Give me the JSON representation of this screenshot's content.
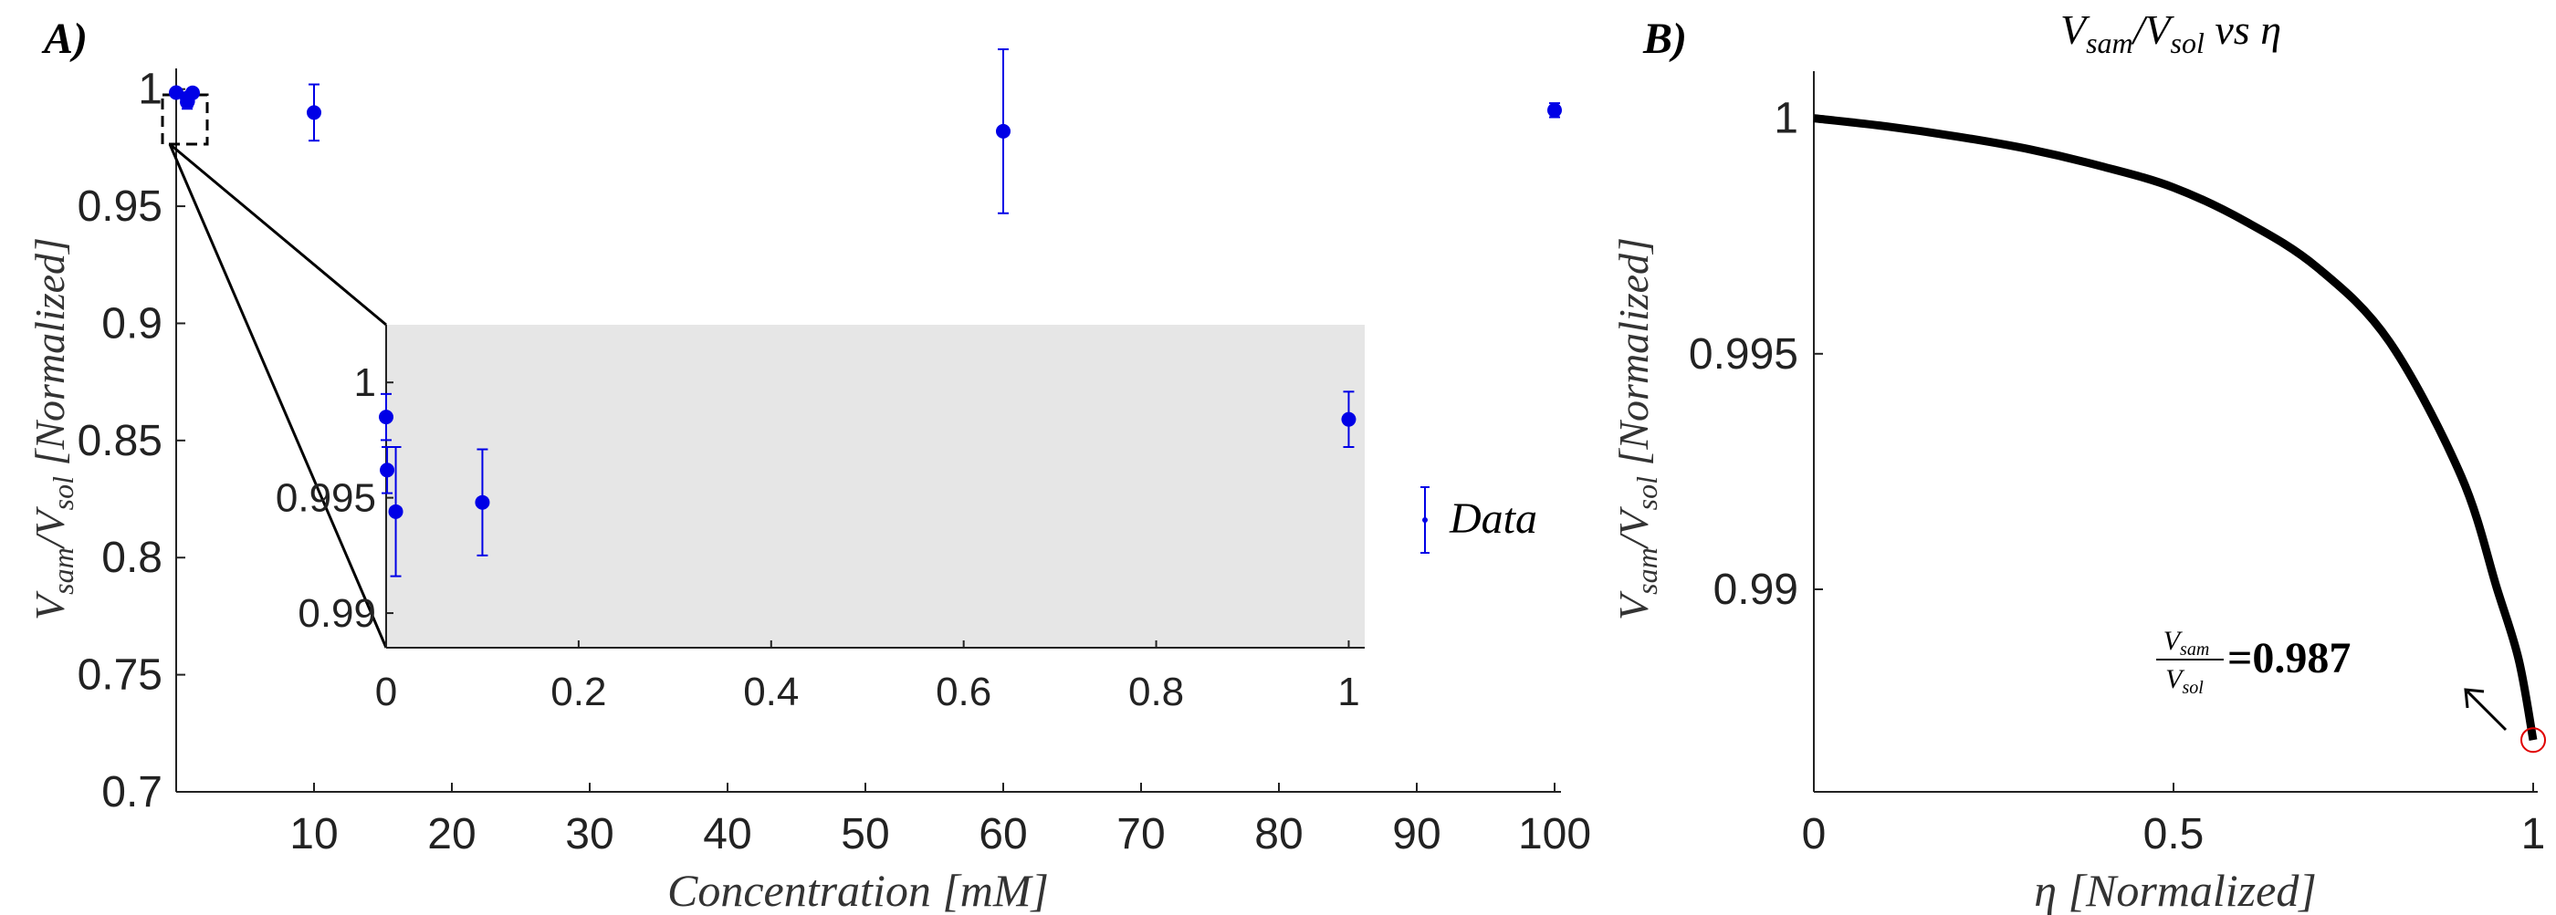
{
  "chart_data": [
    {
      "panel_label": "A)",
      "type": "scatter",
      "title": "",
      "xlabel": "Concentration [mM]",
      "ylabel_main": "V",
      "ylabel_sub1": "sam",
      "ylabel_mid": "/V",
      "ylabel_sub2": "sol",
      "ylabel_tail": " [Normalized]",
      "xlim": [
        0,
        100
      ],
      "ylim": [
        0.7,
        1.01
      ],
      "xticks": [
        "10",
        "20",
        "30",
        "40",
        "50",
        "60",
        "70",
        "80",
        "90",
        "100"
      ],
      "yticks": [
        "0.7",
        "0.75",
        "0.8",
        "0.85",
        "0.9",
        "0.95",
        "1"
      ],
      "legend": "Data",
      "legend_position": "right",
      "series": [
        {
          "color": "#0000e6",
          "points": [
            {
              "x": 0,
              "y": 0.9985,
              "err": 0.001
            },
            {
              "x": 0.001,
              "y": 0.9962,
              "err": 0.001
            },
            {
              "x": 0.01,
              "y": 0.9944,
              "err": 0.0028
            },
            {
              "x": 0.1,
              "y": 0.9948,
              "err": 0.0023
            },
            {
              "x": 1,
              "y": 0.9984,
              "err": 0.0012
            },
            {
              "x": 10,
              "y": 0.99,
              "err": 0.012
            },
            {
              "x": 60,
              "y": 0.982,
              "err": 0.035
            },
            {
              "x": 100,
              "y": 0.991,
              "err": 0.003
            }
          ]
        }
      ],
      "inset": {
        "xlim": [
          0,
          1.01
        ],
        "ylim": [
          0.9885,
          1.0025
        ],
        "xticks": [
          "0",
          "0.2",
          "0.4",
          "0.6",
          "0.8",
          "1"
        ],
        "yticks": [
          "0.99",
          "0.995",
          "1"
        ],
        "background": "#e6e6e6"
      }
    },
    {
      "panel_label": "B)",
      "type": "line",
      "title_main": "V",
      "title_sub1": "sam",
      "title_mid": "/V",
      "title_sub2": "sol",
      "title_tail": " vs η",
      "xlabel": "η [Normalized]",
      "ylabel_main": "V",
      "ylabel_sub1": "sam",
      "ylabel_mid": "/V",
      "ylabel_sub2": "sol",
      "ylabel_tail": " [Normalized]",
      "xlim": [
        0,
        1
      ],
      "ylim": [
        0.9857,
        1.001
      ],
      "xticks": [
        "0",
        "0.5",
        "1"
      ],
      "yticks": [
        "0.99",
        "0.995",
        "1"
      ],
      "curve_color": "#000000",
      "curve": [
        {
          "x": 0,
          "y": 1.0
        },
        {
          "x": 0.1,
          "y": 0.99983
        },
        {
          "x": 0.2,
          "y": 0.99961
        },
        {
          "x": 0.3,
          "y": 0.99934
        },
        {
          "x": 0.4,
          "y": 0.99898
        },
        {
          "x": 0.5,
          "y": 0.99853
        },
        {
          "x": 0.6,
          "y": 0.99781
        },
        {
          "x": 0.7,
          "y": 0.99683
        },
        {
          "x": 0.8,
          "y": 0.99526
        },
        {
          "x": 0.9,
          "y": 0.9924
        },
        {
          "x": 0.95,
          "y": 0.99
        },
        {
          "x": 0.98,
          "y": 0.9885
        },
        {
          "x": 1.0,
          "y": 0.9868
        }
      ],
      "annotation": {
        "frac_num_main": "V",
        "frac_num_sub": "sam",
        "frac_den_main": "V",
        "frac_den_sub": "sol",
        "value_text": "=0.987",
        "point": {
          "x": 1.0,
          "y": 0.9868
        },
        "marker_color": "#e00000"
      }
    }
  ]
}
